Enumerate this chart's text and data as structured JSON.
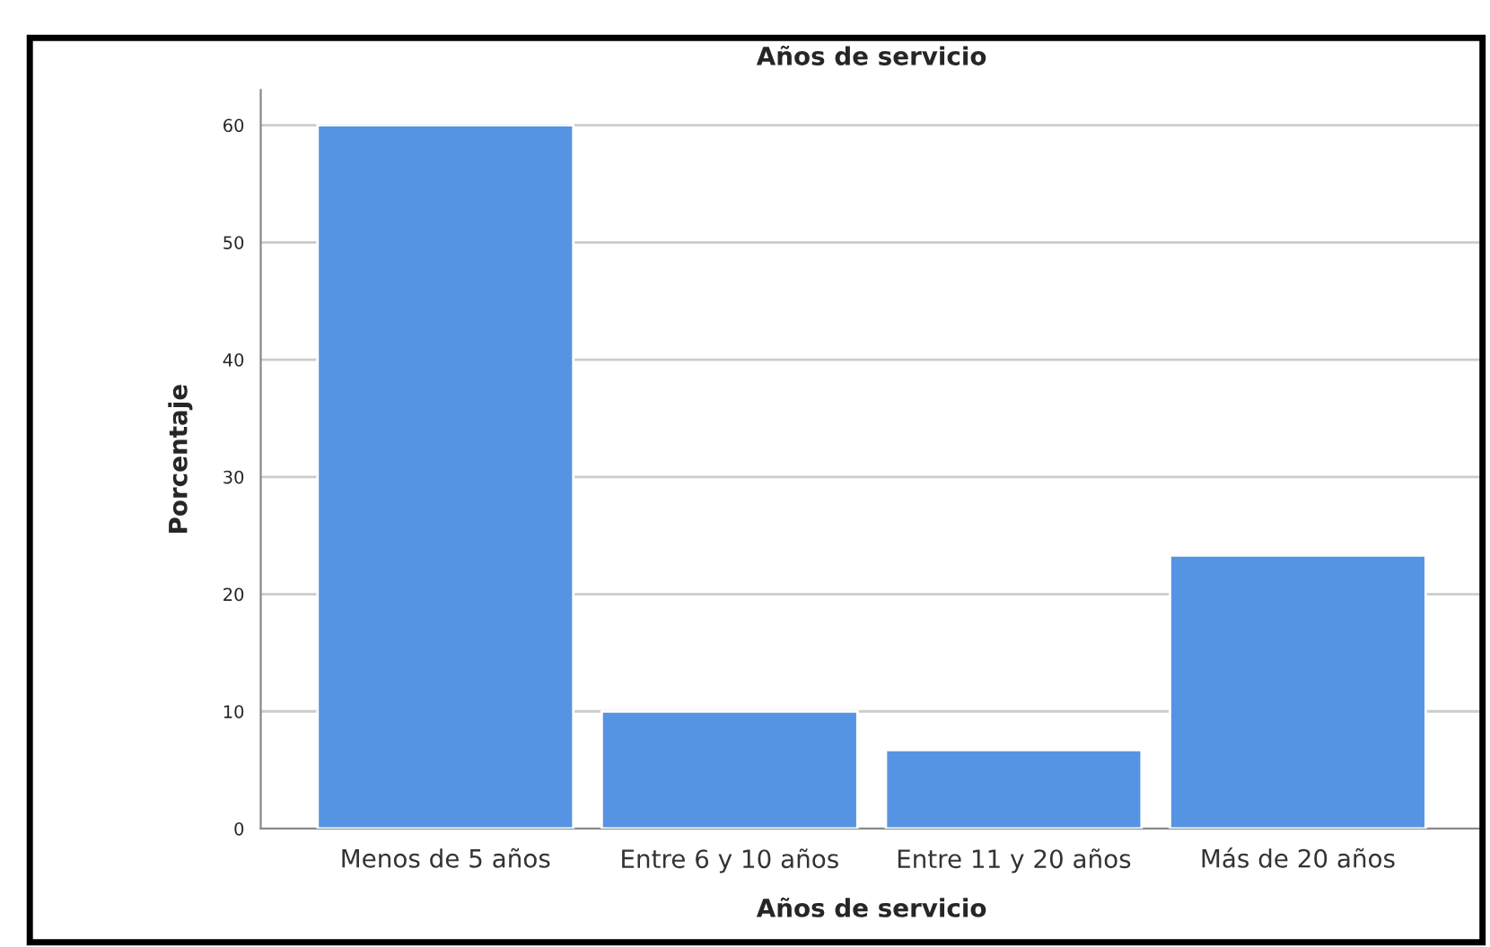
{
  "chart_data": {
    "type": "bar",
    "title": "Años de servicio",
    "xlabel": "Años de servicio",
    "ylabel": "Porcentaje",
    "categories": [
      "Menos de 5 años",
      "Entre 6 y 10 años",
      "Entre 11 y 20 años",
      "Más de 20 años"
    ],
    "values": [
      60,
      10,
      6.7,
      23.3
    ],
    "color": "#5594e3",
    "ylim": [
      0,
      63
    ],
    "yticks": [
      0,
      10,
      20,
      30,
      40,
      50,
      60
    ],
    "grid": "y"
  }
}
